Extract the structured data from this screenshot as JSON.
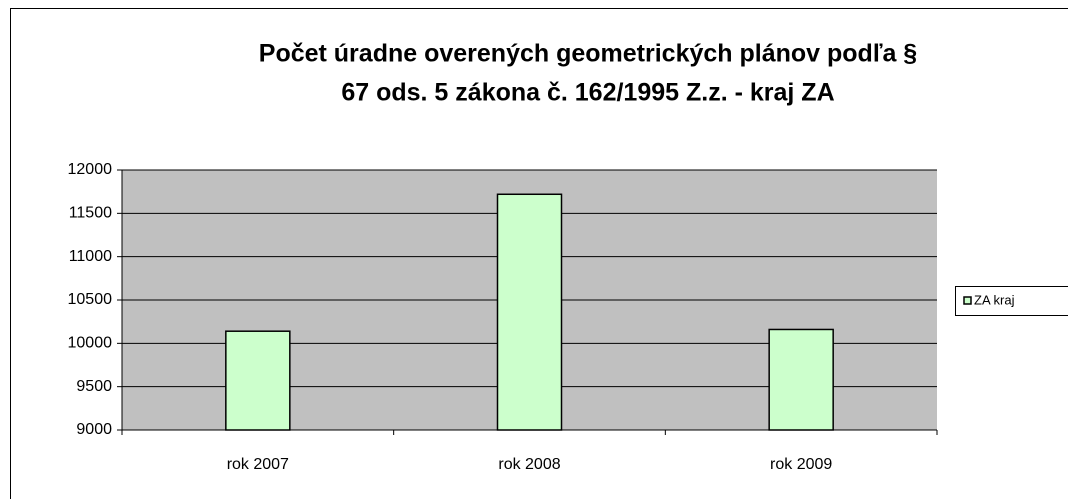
{
  "chart_data": {
    "type": "bar",
    "title": [
      "Počet úradne overených geometrických plánov podľa §",
      "67 ods. 5 zákona č. 162/1995 Z.z. - kraj ZA"
    ],
    "categories": [
      "rok 2007",
      "rok 2008",
      "rok 2009"
    ],
    "series": [
      {
        "name": "ZA kraj",
        "color": "#ccffcc",
        "values": [
          10140,
          11720,
          10160
        ]
      }
    ],
    "ylim": [
      9000,
      12000
    ],
    "yticks": [
      9000,
      9500,
      10000,
      10500,
      11000,
      11500,
      12000
    ],
    "grid": true,
    "legend": "right"
  }
}
